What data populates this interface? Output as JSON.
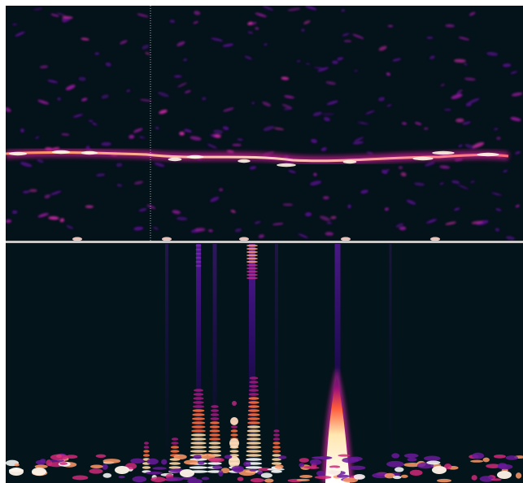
{
  "view": {
    "panes": [
      {
        "name": "upper-spectrogram-pane"
      },
      {
        "name": "lower-spectrogram-pane"
      }
    ],
    "colors": {
      "background": "#04121a",
      "low": "#3a0a6e",
      "mid": "#b8188c",
      "high": "#ff6a3c",
      "peak": "#fff6e6",
      "divider": "#c8c8c8",
      "cursor": "#d8d8d8",
      "frame": "#ffffff"
    }
  }
}
